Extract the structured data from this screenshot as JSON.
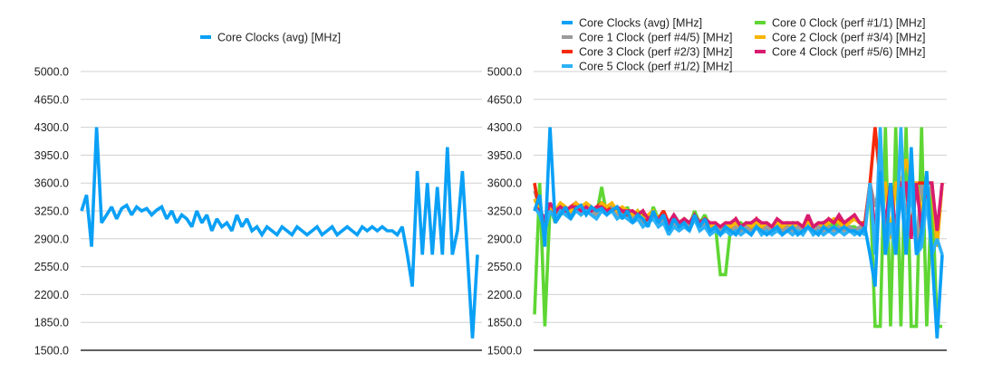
{
  "chart_data": [
    {
      "type": "line",
      "title": "",
      "xlabel": "",
      "ylabel": "",
      "ylim": [
        1500,
        5000
      ],
      "yticks": [
        "5000.0",
        "4650.0",
        "4300.0",
        "3950.0",
        "3600.0",
        "3250.0",
        "2900.0",
        "2550.0",
        "2200.0",
        "1850.0",
        "1500.0"
      ],
      "grid": true,
      "legend_position": "top-center",
      "series": [
        {
          "name": "Core Clocks (avg) [MHz]",
          "color": "#0aa0f6",
          "values": [
            3250,
            3450,
            2800,
            4300,
            3100,
            3200,
            3300,
            3150,
            3280,
            3320,
            3200,
            3300,
            3250,
            3280,
            3200,
            3260,
            3300,
            3150,
            3250,
            3100,
            3200,
            3150,
            3050,
            3250,
            3100,
            3200,
            3000,
            3150,
            3050,
            3100,
            3000,
            3200,
            3050,
            3150,
            3000,
            3050,
            2950,
            3050,
            3000,
            2950,
            3050,
            3000,
            2950,
            3050,
            3000,
            2950,
            3000,
            3050,
            2950,
            3000,
            3050,
            2950,
            3000,
            3050,
            3000,
            2950,
            3050,
            3000,
            3050,
            3000,
            3050,
            3000,
            3000,
            2950,
            3050,
            2700,
            2300,
            3750,
            2700,
            3600,
            2700,
            3550,
            2700,
            4050,
            2700,
            3000,
            3750,
            2700,
            1650,
            2700
          ]
        }
      ]
    },
    {
      "type": "line",
      "title": "",
      "xlabel": "",
      "ylabel": "",
      "ylim": [
        1500,
        5000
      ],
      "yticks": [
        "5000.0",
        "4650.0",
        "4300.0",
        "3950.0",
        "3600.0",
        "3250.0",
        "2900.0",
        "2550.0",
        "2200.0",
        "1850.0",
        "1500.0"
      ],
      "grid": true,
      "legend_position": "top",
      "series": [
        {
          "name": "Core Clocks (avg) [MHz]",
          "color": "#0aa0f6",
          "values": [
            3250,
            3450,
            2800,
            4300,
            3100,
            3200,
            3300,
            3150,
            3280,
            3320,
            3200,
            3300,
            3250,
            3280,
            3200,
            3260,
            3300,
            3150,
            3250,
            3100,
            3200,
            3150,
            3050,
            3250,
            3100,
            3200,
            3000,
            3150,
            3050,
            3100,
            3000,
            3200,
            3050,
            3150,
            3000,
            3050,
            2950,
            3050,
            3000,
            2950,
            3050,
            3000,
            2950,
            3050,
            3000,
            2950,
            3000,
            3050,
            2950,
            3000,
            3050,
            2950,
            3000,
            3050,
            3000,
            2950,
            3050,
            3000,
            3050,
            3000,
            3050,
            3000,
            3000,
            2950,
            3050,
            2700,
            2300,
            3750,
            2700,
            3600,
            2700,
            3550,
            2700,
            4050,
            2700,
            3000,
            3750,
            2700,
            1650,
            2700
          ]
        },
        {
          "name": "Core 0 Clock (perf #1/1) [MHz]",
          "color": "#5fd634",
          "values": [
            1950,
            3600,
            1800,
            3300,
            3100,
            3200,
            3250,
            3150,
            3300,
            3200,
            3250,
            3300,
            3200,
            3550,
            3200,
            3300,
            3250,
            3150,
            3300,
            3100,
            3250,
            3200,
            3050,
            3300,
            3150,
            3250,
            3000,
            3200,
            3100,
            3150,
            3050,
            3250,
            3100,
            3200,
            3050,
            3100,
            2450,
            2450,
            3050,
            3000,
            3100,
            3050,
            3000,
            3100,
            3050,
            3000,
            3050,
            3100,
            3000,
            3050,
            3100,
            3000,
            3050,
            3100,
            3050,
            3000,
            3100,
            3050,
            3100,
            3050,
            3100,
            3050,
            3050,
            3000,
            3100,
            3600,
            1800,
            1800,
            4300,
            1800,
            4300,
            1800,
            4300,
            1800,
            1800,
            4300,
            1800,
            3600,
            1800,
            1800
          ]
        },
        {
          "name": "Core 1 Clock (perf #4/5) [MHz]",
          "color": "#9b9b9b",
          "values": [
            3500,
            3300,
            3100,
            3250,
            3200,
            3300,
            3250,
            3200,
            3300,
            3250,
            3300,
            3250,
            3200,
            3300,
            3250,
            3300,
            3200,
            3250,
            3200,
            3150,
            3200,
            3100,
            3150,
            3200,
            3100,
            3150,
            3050,
            3100,
            3050,
            3100,
            3050,
            3150,
            3050,
            3100,
            3000,
            3050,
            3000,
            3050,
            3000,
            3050,
            3000,
            3050,
            3000,
            3050,
            3000,
            3050,
            3000,
            3050,
            3000,
            3050,
            3000,
            3050,
            3000,
            3050,
            3000,
            3050,
            3000,
            3050,
            3000,
            3050,
            3000,
            3050,
            3000,
            3050,
            3000,
            3600,
            3300,
            3600,
            2800,
            3600,
            2800,
            3600,
            3200,
            3600,
            2800,
            3600,
            3300,
            3600,
            2800,
            3600
          ]
        },
        {
          "name": "Core 2 Clock (perf #3/4) [MHz]",
          "color": "#f7b500",
          "values": [
            3400,
            3250,
            3150,
            3300,
            3250,
            3350,
            3300,
            3250,
            3350,
            3300,
            3350,
            3300,
            3250,
            3350,
            3300,
            3350,
            3250,
            3300,
            3250,
            3200,
            3250,
            3150,
            3200,
            3250,
            3150,
            3200,
            3100,
            3150,
            3100,
            3150,
            3100,
            3200,
            3100,
            3150,
            3050,
            3100,
            3050,
            3100,
            3050,
            3100,
            3050,
            3100,
            3050,
            3100,
            3050,
            3100,
            3050,
            3100,
            3050,
            3100,
            3050,
            3100,
            3050,
            3100,
            3050,
            3100,
            3050,
            3100,
            3150,
            3100,
            3050,
            3100,
            3150,
            3100,
            3050,
            3600,
            3000,
            3600,
            3600,
            2900,
            3600,
            3600,
            3900,
            3600,
            3600,
            3200,
            3600,
            3600,
            2800,
            3600
          ]
        },
        {
          "name": "Core 3 Clock (perf #2/3) [MHz]",
          "color": "#f52a0a",
          "values": [
            3600,
            3200,
            3100,
            3300,
            3200,
            3300,
            3250,
            3300,
            3350,
            3250,
            3300,
            3250,
            3300,
            3350,
            3300,
            3250,
            3300,
            3250,
            3200,
            3250,
            3200,
            3250,
            3100,
            3200,
            3150,
            3250,
            3100,
            3150,
            3100,
            3150,
            3100,
            3150,
            3100,
            3150,
            3050,
            3100,
            3050,
            3100,
            3050,
            3150,
            3050,
            3100,
            3050,
            3150,
            3050,
            3100,
            3050,
            3100,
            3050,
            3100,
            3050,
            3100,
            3050,
            3150,
            3050,
            3100,
            3050,
            3150,
            3100,
            3150,
            3100,
            3150,
            3150,
            3100,
            3100,
            3600,
            4300,
            3600,
            3000,
            3600,
            2900,
            3600,
            3600,
            3000,
            3600,
            3600,
            3600,
            3600,
            2900,
            3600
          ]
        },
        {
          "name": "Core 4 Clock (perf #5/6) [MHz]",
          "color": "#d81b6f",
          "values": [
            3300,
            3250,
            3150,
            3350,
            3250,
            3300,
            3250,
            3300,
            3300,
            3250,
            3300,
            3250,
            3300,
            3300,
            3250,
            3250,
            3300,
            3250,
            3250,
            3250,
            3200,
            3250,
            3150,
            3200,
            3150,
            3200,
            3100,
            3200,
            3100,
            3150,
            3100,
            3200,
            3100,
            3150,
            3100,
            3100,
            3050,
            3100,
            3100,
            3150,
            3050,
            3100,
            3100,
            3150,
            3100,
            3100,
            3050,
            3150,
            3100,
            3100,
            3100,
            3100,
            3050,
            3200,
            3050,
            3100,
            3100,
            3150,
            3100,
            3200,
            3100,
            3150,
            3200,
            3100,
            3050,
            3600,
            3000,
            3600,
            3100,
            3600,
            3000,
            3600,
            3600,
            2900,
            3600,
            3000,
            3600,
            3600,
            3000,
            3600
          ]
        },
        {
          "name": "Core 5 Clock (perf #1/2) [MHz]",
          "color": "#2cb1f7",
          "values": [
            3300,
            3200,
            3000,
            3250,
            3150,
            3250,
            3200,
            3150,
            3250,
            3200,
            3250,
            3200,
            3150,
            3250,
            3200,
            3250,
            3150,
            3200,
            3150,
            3100,
            3150,
            3050,
            3100,
            3150,
            3050,
            3100,
            2950,
            3050,
            3000,
            3050,
            3000,
            3150,
            3000,
            3050,
            2950,
            3000,
            2950,
            3000,
            2950,
            3000,
            2950,
            3000,
            2950,
            3050,
            2950,
            3000,
            2950,
            3000,
            2950,
            3000,
            2950,
            3000,
            2950,
            3050,
            2950,
            3000,
            2950,
            3000,
            2950,
            3000,
            2950,
            3000,
            2950,
            3000,
            2950,
            3600,
            2700,
            4300,
            2700,
            3100,
            2700,
            4300,
            2700,
            3600,
            2700,
            2800,
            3400,
            2700,
            2900,
            2700
          ]
        }
      ]
    }
  ]
}
